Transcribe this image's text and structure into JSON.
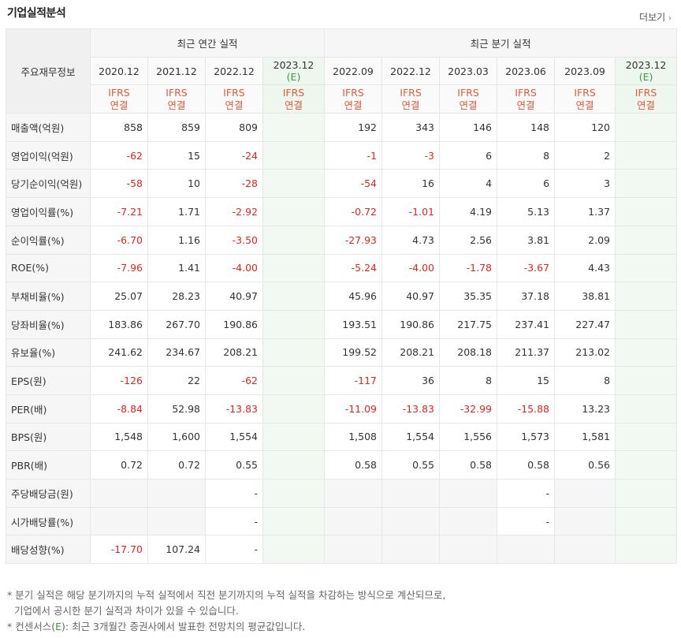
{
  "header": {
    "title": "기업실적분석",
    "more_label": "더보기",
    "more_arrow": "›"
  },
  "table": {
    "corner_label": "주요재무정보",
    "group_annual": "최근 연간 실적",
    "group_quarter": "최근 분기 실적",
    "periods": [
      {
        "label": "2020.12",
        "est": false
      },
      {
        "label": "2021.12",
        "est": false
      },
      {
        "label": "2022.12",
        "est": false
      },
      {
        "label": "2023.12",
        "est": true,
        "est_mark": "(E)"
      },
      {
        "label": "2022.09",
        "est": false
      },
      {
        "label": "2022.12",
        "est": false
      },
      {
        "label": "2023.03",
        "est": false
      },
      {
        "label": "2023.06",
        "est": false
      },
      {
        "label": "2023.09",
        "est": false
      },
      {
        "label": "2023.12",
        "est": true,
        "est_mark": "(E)"
      }
    ],
    "basis_line1": "IFRS",
    "basis_line2": "연결",
    "rows": [
      {
        "label": "매출액(억원)",
        "values": [
          "858",
          "859",
          "809",
          "",
          "192",
          "343",
          "146",
          "148",
          "120",
          ""
        ],
        "group_start": true
      },
      {
        "label": "영업이익(억원)",
        "values": [
          "-62",
          "15",
          "-24",
          "",
          "-1",
          "-3",
          "6",
          "8",
          "2",
          ""
        ]
      },
      {
        "label": "당기순이익(억원)",
        "values": [
          "-58",
          "10",
          "-28",
          "",
          "-54",
          "16",
          "4",
          "6",
          "3",
          ""
        ]
      },
      {
        "label": "영업이익률(%)",
        "values": [
          "-7.21",
          "1.71",
          "-2.92",
          "",
          "-0.72",
          "-1.01",
          "4.19",
          "5.13",
          "1.37",
          ""
        ],
        "group_start": true
      },
      {
        "label": "순이익률(%)",
        "values": [
          "-6.70",
          "1.16",
          "-3.50",
          "",
          "-27.93",
          "4.73",
          "2.56",
          "3.81",
          "2.09",
          ""
        ]
      },
      {
        "label": "ROE(%)",
        "values": [
          "-7.96",
          "1.41",
          "-4.00",
          "",
          "-5.24",
          "-4.00",
          "-1.78",
          "-3.67",
          "4.43",
          ""
        ]
      },
      {
        "label": "부채비율(%)",
        "values": [
          "25.07",
          "28.23",
          "40.97",
          "",
          "45.96",
          "40.97",
          "35.35",
          "37.18",
          "38.81",
          ""
        ],
        "group_start": true
      },
      {
        "label": "당좌비율(%)",
        "values": [
          "183.86",
          "267.70",
          "190.86",
          "",
          "193.51",
          "190.86",
          "217.75",
          "237.41",
          "227.47",
          ""
        ]
      },
      {
        "label": "유보율(%)",
        "values": [
          "241.62",
          "234.67",
          "208.21",
          "",
          "199.52",
          "208.21",
          "208.18",
          "211.37",
          "213.02",
          ""
        ]
      },
      {
        "label": "EPS(원)",
        "values": [
          "-126",
          "22",
          "-62",
          "",
          "-117",
          "36",
          "8",
          "15",
          "8",
          ""
        ],
        "group_start": true
      },
      {
        "label": "PER(배)",
        "values": [
          "-8.84",
          "52.98",
          "-13.83",
          "",
          "-11.09",
          "-13.83",
          "-32.99",
          "-15.88",
          "13.23",
          ""
        ]
      },
      {
        "label": "BPS(원)",
        "values": [
          "1,548",
          "1,600",
          "1,554",
          "",
          "1,508",
          "1,554",
          "1,556",
          "1,573",
          "1,581",
          ""
        ]
      },
      {
        "label": "PBR(배)",
        "values": [
          "0.72",
          "0.72",
          "0.55",
          "",
          "0.58",
          "0.55",
          "0.58",
          "0.58",
          "0.56",
          ""
        ]
      },
      {
        "label": "주당배당금(원)",
        "values": [
          "",
          "",
          "-",
          "",
          "",
          "",
          "",
          "-",
          "",
          ""
        ],
        "group_start": true,
        "blank_cols": [
          0,
          1,
          4,
          5,
          6,
          8
        ]
      },
      {
        "label": "시가배당률(%)",
        "values": [
          "",
          "",
          "-",
          "",
          "",
          "",
          "",
          "-",
          "",
          ""
        ],
        "blank_cols": [
          0,
          1,
          4,
          5,
          6,
          8
        ]
      },
      {
        "label": "배당성향(%)",
        "values": [
          "-17.70",
          "107.24",
          "-",
          "",
          "",
          "",
          "",
          "",
          "",
          ""
        ],
        "blank_cols": [
          4,
          5,
          6,
          7,
          8
        ]
      }
    ]
  },
  "notes": {
    "line1": "* 분기 실적은 해당 분기까지의 누적 실적에서 직전 분기까지의 누적 실적을 차감하는 방식으로 계산되므로,",
    "line2": "기업에서 공시한 분기 실적과 차이가 있을 수 있습니다.",
    "line3_a": "* 컨센서스(",
    "line3_e": "E",
    "line3_b": "): 최근 3개월간 증권사에서 발표한 전망치의 평균값입니다."
  }
}
